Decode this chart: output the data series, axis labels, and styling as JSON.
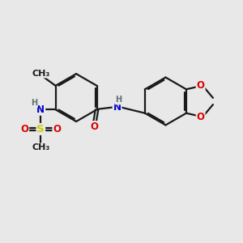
{
  "bg_color": "#e8e8e8",
  "bond_color": "#1a1a1a",
  "bond_width": 1.6,
  "dbo": 0.06,
  "atom_colors": {
    "C": "#1a1a1a",
    "N": "#0000cc",
    "O": "#dd0000",
    "S": "#cccc00",
    "H": "#607070"
  },
  "fs": 8.5,
  "fs_small": 7.0,
  "figsize": [
    3.0,
    3.0
  ],
  "dpi": 100
}
